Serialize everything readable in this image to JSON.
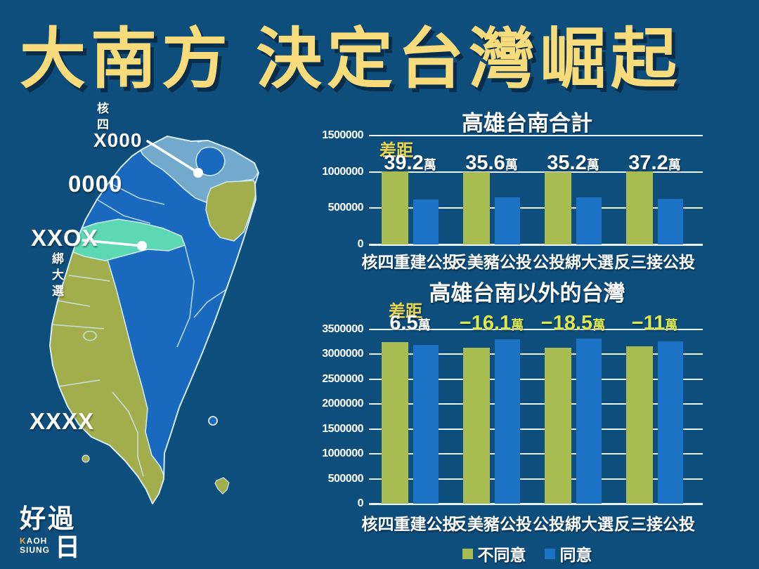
{
  "poster": {
    "title": "大南方 決定台灣崛起",
    "colors": {
      "background": "#0D4E7D",
      "title_yellow": "#F8DB7A",
      "disagree_green": "#A8BC52",
      "agree_blue": "#1C73C6",
      "map_blue": "#1969BE",
      "map_light_blue": "#74A9CE",
      "map_teal": "#5CD9B3",
      "map_olive": "#A2AE4C",
      "gap_yellow": "#E9D44F",
      "diff_negative_yellow": "#DCE94F"
    }
  },
  "map": {
    "annotations": {
      "nuke4_vertical": "核四",
      "north_result": "X000",
      "northwest_result": "0000",
      "central_result": "XXOX",
      "central_vertical": "綁大選",
      "south_result": "XXXX"
    }
  },
  "logo": {
    "hanzi_top": "好過",
    "hanzi_sun": "日",
    "latin_k": "K",
    "latin_aoh": "AOH",
    "latin_siung": "SIUNG"
  },
  "legend": {
    "items": [
      {
        "label": "不同意",
        "color": "disagree_green"
      },
      {
        "label": "同意",
        "color": "agree_blue"
      }
    ]
  },
  "chart_data": [
    {
      "type": "bar",
      "title": "高雄台南合計",
      "gap_label": "差距",
      "categories": [
        "核四重建公投",
        "反美豬公投",
        "公投綁大選",
        "反三接公投"
      ],
      "series": [
        {
          "name": "不同意",
          "values": [
            1010000,
            1000000,
            1000000,
            1005000
          ]
        },
        {
          "name": "同意",
          "values": [
            618000,
            644000,
            648000,
            633000
          ]
        }
      ],
      "gaps": [
        {
          "value": "39.2",
          "unit": "萬",
          "tone": "white"
        },
        {
          "value": "35.6",
          "unit": "萬",
          "tone": "white"
        },
        {
          "value": "35.2",
          "unit": "萬",
          "tone": "white"
        },
        {
          "value": "37.2",
          "unit": "萬",
          "tone": "white"
        }
      ],
      "ylim": [
        0,
        1500000
      ],
      "ytick_step": 500000,
      "grid": true,
      "legend_position": "none"
    },
    {
      "type": "bar",
      "title": "高雄台南以外的台灣",
      "gap_label": "差距",
      "categories": [
        "核四重建公投",
        "反美豬公投",
        "公投綁大選",
        "反三接公投"
      ],
      "series": [
        {
          "name": "不同意",
          "values": [
            3252000,
            3135000,
            3127000,
            3155000
          ]
        },
        {
          "name": "同意",
          "values": [
            3187000,
            3296000,
            3312000,
            3265000
          ]
        }
      ],
      "gaps": [
        {
          "value": "6.5",
          "unit": "萬",
          "tone": "white"
        },
        {
          "value": "−16.1",
          "unit": "萬",
          "tone": "yellow"
        },
        {
          "value": "−18.5",
          "unit": "萬",
          "tone": "yellow"
        },
        {
          "value": "−11",
          "unit": "萬",
          "tone": "yellow"
        }
      ],
      "ylim": [
        0,
        3500000
      ],
      "ytick_step": 500000,
      "grid": true,
      "legend_position": "bottom-center"
    }
  ]
}
